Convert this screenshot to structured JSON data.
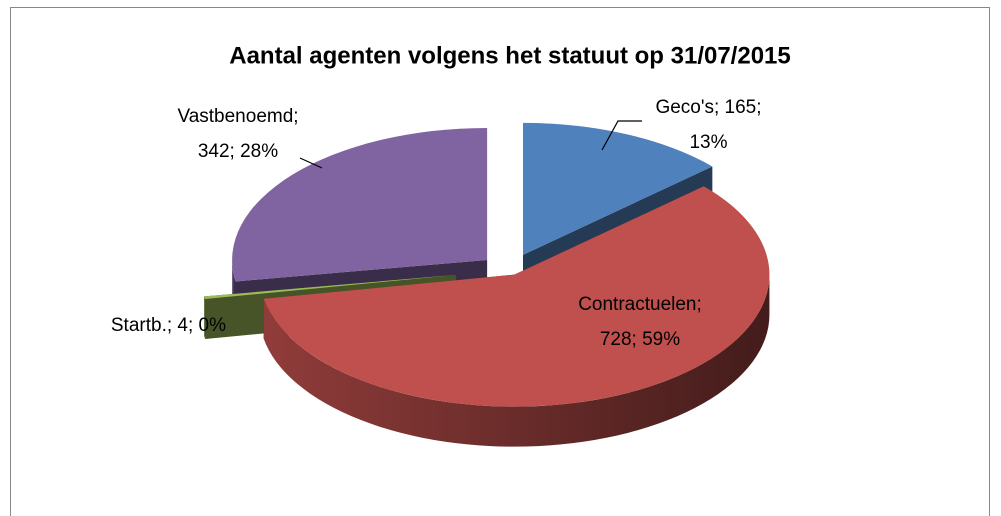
{
  "chart_data": {
    "type": "pie",
    "title": "Aantal agenten volgens het statuut op 31/07/2015",
    "categories": [
      "Geco's",
      "Contractuelen",
      "Startb.",
      "Vastbenoemd"
    ],
    "values": [
      165,
      728,
      4,
      342
    ],
    "value_labels": [
      "Geco's; 165; 13%",
      "Contractuelen; 728; 59%",
      "Startb.; 4; 0%",
      "Vastbenoemd; 342; 28%"
    ],
    "colors": [
      "#4f81bd",
      "#c0504d",
      "#9bbb59",
      "#8064a2"
    ]
  }
}
